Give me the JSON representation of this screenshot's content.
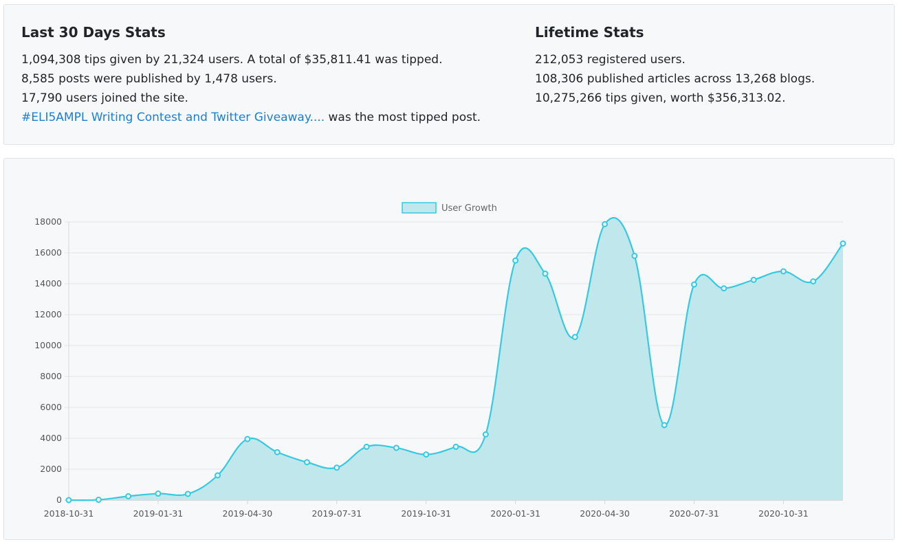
{
  "last30": {
    "title": "Last 30 Days Stats",
    "line1": "1,094,308 tips given by 21,324 users. A total of $35,811.41 was tipped.",
    "line2": "8,585 posts were published by 1,478 users.",
    "line3": "17,790 users joined the site.",
    "top_post_link": "#ELI5AMPL Writing Contest and Twitter Giveaway....",
    "top_post_suffix": " was the most tipped post."
  },
  "lifetime": {
    "title": "Lifetime Stats",
    "line1": "212,053 registered users.",
    "line2": "108,306 published articles across 13,268 blogs.",
    "line3": "10,275,266 tips given, worth $356,313.02."
  },
  "colors": {
    "line": "#36c9e0",
    "fill": "#bfe7ec",
    "link": "#1a7fd4"
  },
  "chart_data": {
    "type": "area",
    "title": "",
    "xlabel": "",
    "ylabel": "",
    "ylim": [
      0,
      18000
    ],
    "yticks": [
      0,
      2000,
      4000,
      6000,
      8000,
      10000,
      12000,
      14000,
      16000,
      18000
    ],
    "xtick_labels": [
      "2018-10-31",
      "2019-01-31",
      "2019-04-30",
      "2019-07-31",
      "2019-10-31",
      "2020-01-31",
      "2020-04-30",
      "2020-07-31",
      "2020-10-31"
    ],
    "legend": "top-center",
    "grid": true,
    "series": [
      {
        "name": "User Growth",
        "x": [
          "2018-10-31",
          "2018-11-30",
          "2018-12-31",
          "2019-01-31",
          "2019-02-28",
          "2019-03-31",
          "2019-04-30",
          "2019-05-31",
          "2019-06-30",
          "2019-07-31",
          "2019-08-31",
          "2019-09-30",
          "2019-10-31",
          "2019-11-30",
          "2019-12-31",
          "2020-01-31",
          "2020-02-29",
          "2020-03-31",
          "2020-04-30",
          "2020-05-31",
          "2020-06-30",
          "2020-07-31",
          "2020-08-31",
          "2020-09-30",
          "2020-10-31",
          "2020-11-30",
          "2020-12-31"
        ],
        "values": [
          0,
          20,
          250,
          420,
          400,
          1600,
          3950,
          3100,
          2450,
          2100,
          3450,
          3380,
          2950,
          3450,
          4250,
          15500,
          14650,
          10550,
          17850,
          15800,
          4850,
          13950,
          13700,
          14250,
          14800,
          14150,
          16600
        ]
      }
    ]
  }
}
